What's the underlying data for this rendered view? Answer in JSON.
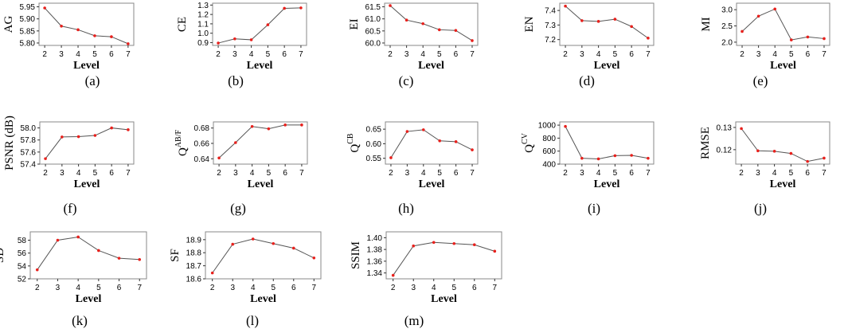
{
  "chart_data": [
    {
      "type": "line",
      "x": [
        2,
        3,
        4,
        5,
        6,
        7
      ],
      "ylabel": "AG",
      "xlabel": "Level",
      "caption": "(a)",
      "yticks": [
        "5.80",
        "5.85",
        "5.90",
        "5.95"
      ],
      "ylim": [
        5.79,
        5.965
      ],
      "series": [
        {
          "values": [
            5.945,
            5.87,
            5.855,
            5.83,
            5.826,
            5.797
          ]
        }
      ]
    },
    {
      "type": "line",
      "x": [
        2,
        3,
        4,
        5,
        6,
        7
      ],
      "ylabel": "CE",
      "xlabel": "Level",
      "caption": "(b)",
      "yticks": [
        "0.9",
        "1.0",
        "1.1",
        "1.2",
        "1.3"
      ],
      "ylim": [
        0.87,
        1.32
      ],
      "series": [
        {
          "values": [
            0.895,
            0.94,
            0.93,
            1.09,
            1.265,
            1.27
          ]
        }
      ]
    },
    {
      "type": "line",
      "x": [
        2,
        3,
        4,
        5,
        6,
        7
      ],
      "ylabel": "EI",
      "xlabel": "Level",
      "caption": "(c)",
      "yticks": [
        "60.0",
        "60.5",
        "61.0",
        "61.5"
      ],
      "ylim": [
        59.9,
        61.65
      ],
      "series": [
        {
          "values": [
            61.55,
            60.95,
            60.8,
            60.55,
            60.52,
            60.1
          ]
        }
      ]
    },
    {
      "type": "line",
      "x": [
        2,
        3,
        4,
        5,
        6,
        7
      ],
      "ylabel": "EN",
      "xlabel": "Level",
      "caption": "(d)",
      "yticks": [
        "7.2",
        "7.3",
        "7.4"
      ],
      "ylim": [
        7.16,
        7.45
      ],
      "series": [
        {
          "values": [
            7.43,
            7.33,
            7.325,
            7.34,
            7.29,
            7.21
          ]
        }
      ]
    },
    {
      "type": "line",
      "x": [
        2,
        3,
        4,
        5,
        6,
        7
      ],
      "ylabel": "MI",
      "xlabel": "Level",
      "caption": "(e)",
      "yticks": [
        "2.0",
        "2.5",
        "3.0"
      ],
      "ylim": [
        1.9,
        3.2
      ],
      "series": [
        {
          "values": [
            2.33,
            2.8,
            3.02,
            2.07,
            2.16,
            2.11
          ]
        }
      ]
    },
    {
      "type": "line",
      "x": [
        2,
        3,
        4,
        5,
        6,
        7
      ],
      "ylabel": "PSNR (dB)",
      "xlabel": "Level",
      "caption": "(f)",
      "yticks": [
        "57.4",
        "57.6",
        "57.8",
        "58.0"
      ],
      "ylim": [
        57.4,
        58.1
      ],
      "series": [
        {
          "values": [
            57.49,
            57.85,
            57.855,
            57.875,
            58.0,
            57.97
          ]
        }
      ]
    },
    {
      "type": "line",
      "x": [
        2,
        3,
        4,
        5,
        6,
        7
      ],
      "ylabel": "Q",
      "ylabel_sup": "AB/F",
      "xlabel": "Level",
      "caption": "(g)",
      "yticks": [
        "0.64",
        "0.66",
        "0.68"
      ],
      "ylim": [
        0.633,
        0.688
      ],
      "series": [
        {
          "values": [
            0.641,
            0.661,
            0.682,
            0.679,
            0.684,
            0.684
          ]
        }
      ]
    },
    {
      "type": "line",
      "x": [
        2,
        3,
        4,
        5,
        6,
        7
      ],
      "ylabel": "Q",
      "ylabel_sup": "CB",
      "xlabel": "Level",
      "caption": "(h)",
      "yticks": [
        "0.55",
        "0.60",
        "0.65"
      ],
      "ylim": [
        0.53,
        0.675
      ],
      "series": [
        {
          "values": [
            0.552,
            0.642,
            0.648,
            0.61,
            0.607,
            0.579
          ]
        }
      ]
    },
    {
      "type": "line",
      "x": [
        2,
        3,
        4,
        5,
        6,
        7
      ],
      "ylabel": "Q",
      "ylabel_sup": "CV",
      "xlabel": "Level",
      "caption": "(i)",
      "yticks": [
        "400",
        "600",
        "800",
        "1000"
      ],
      "ylim": [
        400,
        1050
      ],
      "series": [
        {
          "values": [
            980,
            490,
            480,
            530,
            535,
            490
          ]
        }
      ]
    },
    {
      "type": "line",
      "x": [
        2,
        3,
        4,
        5,
        6,
        7
      ],
      "ylabel": "RMSE",
      "xlabel": "Level",
      "caption": "(j)",
      "yticks": [
        "0.12",
        "0.13"
      ],
      "ylim": [
        0.1135,
        0.1325
      ],
      "series": [
        {
          "values": [
            0.1295,
            0.1195,
            0.1193,
            0.1183,
            0.1147,
            0.1162
          ]
        }
      ]
    },
    {
      "type": "line",
      "x": [
        2,
        3,
        4,
        5,
        6,
        7
      ],
      "ylabel": "SD",
      "xlabel": "Level",
      "caption": "(k)",
      "yticks": [
        "52",
        "54",
        "56",
        "58"
      ],
      "ylim": [
        52,
        59.3
      ],
      "series": [
        {
          "values": [
            53.4,
            58.0,
            58.5,
            56.4,
            55.2,
            55.0
          ]
        }
      ]
    },
    {
      "type": "line",
      "x": [
        2,
        3,
        4,
        5,
        6,
        7
      ],
      "ylabel": "SF",
      "xlabel": "Level",
      "caption": "(l)",
      "yticks": [
        "18.6",
        "18.7",
        "18.8",
        "18.9"
      ],
      "ylim": [
        18.6,
        18.96
      ],
      "series": [
        {
          "values": [
            18.645,
            18.865,
            18.905,
            18.87,
            18.835,
            18.76
          ]
        }
      ]
    },
    {
      "type": "line",
      "x": [
        2,
        3,
        4,
        5,
        6,
        7
      ],
      "ylabel": "SSIM",
      "xlabel": "Level",
      "caption": "(m)",
      "yticks": [
        "1.34",
        "1.36",
        "1.38",
        "1.40"
      ],
      "ylim": [
        1.33,
        1.41
      ],
      "series": [
        {
          "values": [
            1.336,
            1.386,
            1.392,
            1.39,
            1.388,
            1.377
          ]
        }
      ]
    }
  ],
  "colors": {
    "line": "#555555",
    "point": "#e8201c",
    "frame": "#888888"
  }
}
